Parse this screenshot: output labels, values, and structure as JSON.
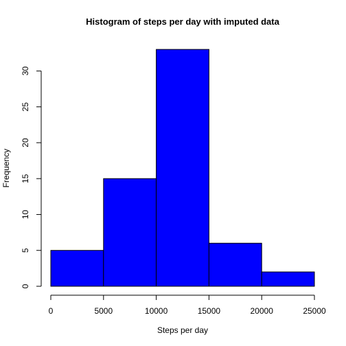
{
  "chart_data": {
    "type": "bar",
    "subtype": "histogram",
    "title": "Histogram of steps per day with imputed data",
    "xlabel": "Steps per day",
    "ylabel": "Frequency",
    "bins": [
      {
        "from": 0,
        "to": 5000,
        "count": 5
      },
      {
        "from": 5000,
        "to": 10000,
        "count": 15
      },
      {
        "from": 10000,
        "to": 15000,
        "count": 33
      },
      {
        "from": 15000,
        "to": 20000,
        "count": 6
      },
      {
        "from": 20000,
        "to": 25000,
        "count": 2
      }
    ],
    "xlim": [
      0,
      25000
    ],
    "ylim": [
      0,
      33
    ],
    "xticks": [
      0,
      5000,
      10000,
      15000,
      20000,
      25000
    ],
    "yticks": [
      0,
      5,
      10,
      15,
      20,
      25,
      30
    ],
    "bar_color": "#0000ff",
    "bar_border_color": "#000000",
    "grid": false,
    "legend": "none"
  }
}
